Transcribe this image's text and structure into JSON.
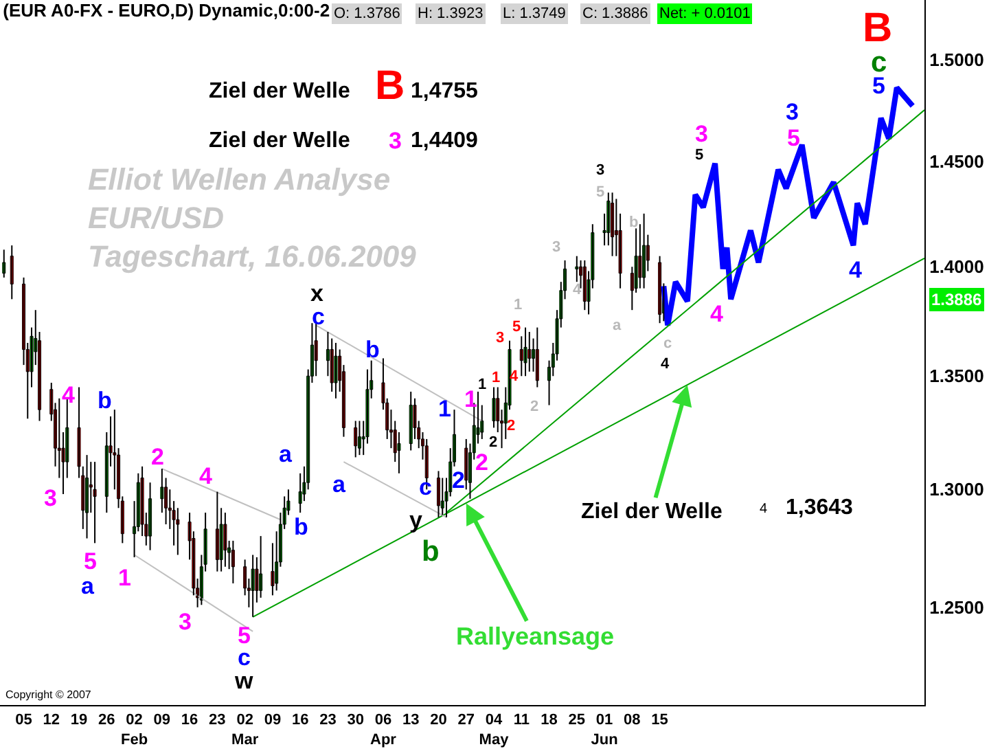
{
  "chart_data": {
    "type": "candlestick",
    "title": "(EUR A0-FX - EURO,D) Dynamic,0:00-2",
    "x": [
      "2008-12-31",
      "2009-01-02",
      "2009-01-05",
      "2009-01-06",
      "2009-01-07",
      "2009-01-08",
      "2009-01-09",
      "2009-01-12",
      "2009-01-13",
      "2009-01-14",
      "2009-01-15",
      "2009-01-16",
      "2009-01-19",
      "2009-01-20",
      "2009-01-21",
      "2009-01-22",
      "2009-01-23",
      "2009-01-26",
      "2009-01-27",
      "2009-01-28",
      "2009-01-29",
      "2009-01-30",
      "2009-02-02",
      "2009-02-03",
      "2009-02-04",
      "2009-02-05",
      "2009-02-06",
      "2009-02-09",
      "2009-02-10",
      "2009-02-11",
      "2009-02-12",
      "2009-02-13",
      "2009-02-16",
      "2009-02-17",
      "2009-02-18",
      "2009-02-19",
      "2009-02-20",
      "2009-02-23",
      "2009-02-24",
      "2009-02-25",
      "2009-02-26",
      "2009-02-27",
      "2009-03-02",
      "2009-03-03",
      "2009-03-04",
      "2009-03-05",
      "2009-03-06",
      "2009-03-09",
      "2009-03-10",
      "2009-03-11",
      "2009-03-12",
      "2009-03-13",
      "2009-03-16",
      "2009-03-17",
      "2009-03-18",
      "2009-03-19",
      "2009-03-20",
      "2009-03-23",
      "2009-03-24",
      "2009-03-25",
      "2009-03-26",
      "2009-03-27",
      "2009-03-30",
      "2009-03-31",
      "2009-04-01",
      "2009-04-02",
      "2009-04-03",
      "2009-04-06",
      "2009-04-07",
      "2009-04-08",
      "2009-04-09",
      "2009-04-10",
      "2009-04-13",
      "2009-04-14",
      "2009-04-15",
      "2009-04-16",
      "2009-04-17",
      "2009-04-20",
      "2009-04-21",
      "2009-04-22",
      "2009-04-23",
      "2009-04-24",
      "2009-04-27",
      "2009-04-28",
      "2009-04-29",
      "2009-04-30",
      "2009-05-01",
      "2009-05-04",
      "2009-05-05",
      "2009-05-06",
      "2009-05-07",
      "2009-05-08",
      "2009-05-11",
      "2009-05-12",
      "2009-05-13",
      "2009-05-14",
      "2009-05-15",
      "2009-05-18",
      "2009-05-19",
      "2009-05-20",
      "2009-05-21",
      "2009-05-22",
      "2009-05-25",
      "2009-05-26",
      "2009-05-27",
      "2009-05-28",
      "2009-05-29",
      "2009-06-01",
      "2009-06-02",
      "2009-06-03",
      "2009-06-04",
      "2009-06-05",
      "2009-06-08",
      "2009-06-09",
      "2009-06-10",
      "2009-06-11",
      "2009-06-12",
      "2009-06-15",
      "2009-06-16"
    ],
    "ohlc": [
      [
        1.397,
        1.408,
        1.395,
        1.402
      ],
      [
        1.405,
        1.41,
        1.385,
        1.392
      ],
      [
        1.392,
        1.395,
        1.355,
        1.362
      ],
      [
        1.362,
        1.365,
        1.331,
        1.352
      ],
      [
        1.352,
        1.372,
        1.345,
        1.368
      ],
      [
        1.361,
        1.38,
        1.355,
        1.367
      ],
      [
        1.366,
        1.37,
        1.33,
        1.335
      ],
      [
        1.344,
        1.347,
        1.33,
        1.333
      ],
      [
        1.335,
        1.338,
        1.31,
        1.318
      ],
      [
        1.318,
        1.34,
        1.305,
        1.317
      ],
      [
        1.318,
        1.325,
        1.298,
        1.312
      ],
      [
        1.312,
        1.34,
        1.305,
        1.327
      ],
      [
        1.327,
        1.345,
        1.305,
        1.31
      ],
      [
        1.306,
        1.31,
        1.283,
        1.291
      ],
      [
        1.29,
        1.315,
        1.279,
        1.305
      ],
      [
        1.302,
        1.312,
        1.29,
        1.301
      ],
      [
        1.3,
        1.312,
        1.277,
        1.297
      ],
      [
        1.297,
        1.325,
        1.29,
        1.319
      ],
      [
        1.319,
        1.332,
        1.31,
        1.316
      ],
      [
        1.316,
        1.335,
        1.3,
        1.315
      ],
      [
        1.315,
        1.318,
        1.292,
        1.296
      ],
      [
        1.295,
        1.297,
        1.277,
        1.281
      ],
      [
        1.281,
        1.295,
        1.271,
        1.284
      ],
      [
        1.284,
        1.307,
        1.282,
        1.303
      ],
      [
        1.305,
        1.31,
        1.28,
        1.285
      ],
      [
        1.285,
        1.29,
        1.276,
        1.28
      ],
      [
        1.28,
        1.303,
        1.274,
        1.296
      ],
      [
        1.296,
        1.309,
        1.29,
        1.301
      ],
      [
        1.301,
        1.305,
        1.285,
        1.292
      ],
      [
        1.292,
        1.3,
        1.283,
        1.291
      ],
      [
        1.291,
        1.295,
        1.276,
        1.287
      ],
      [
        1.287,
        1.292,
        1.272,
        1.285
      ],
      [
        1.286,
        1.29,
        1.27,
        1.278
      ],
      [
        1.279,
        1.282,
        1.255,
        1.258
      ],
      [
        1.258,
        1.262,
        1.25,
        1.254
      ],
      [
        1.253,
        1.272,
        1.251,
        1.267
      ],
      [
        1.268,
        1.29,
        1.265,
        1.283
      ],
      [
        1.283,
        1.299,
        1.265,
        1.27
      ],
      [
        1.27,
        1.292,
        1.265,
        1.285
      ],
      [
        1.285,
        1.29,
        1.267,
        1.274
      ],
      [
        1.273,
        1.278,
        1.266,
        1.275
      ],
      [
        1.274,
        1.278,
        1.26,
        1.267
      ],
      [
        1.267,
        1.27,
        1.255,
        1.258
      ],
      [
        1.258,
        1.262,
        1.25,
        1.257
      ],
      [
        1.257,
        1.272,
        1.246,
        1.266
      ],
      [
        1.266,
        1.271,
        1.252,
        1.257
      ],
      [
        1.257,
        1.28,
        1.254,
        1.264
      ],
      [
        1.265,
        1.277,
        1.255,
        1.259
      ],
      [
        1.26,
        1.282,
        1.257,
        1.269
      ],
      [
        1.269,
        1.29,
        1.267,
        1.285
      ],
      [
        1.285,
        1.297,
        1.283,
        1.292
      ],
      [
        1.291,
        1.3,
        1.289,
        1.295
      ],
      [
        1.294,
        1.307,
        1.29,
        1.299
      ],
      [
        1.298,
        1.31,
        1.295,
        1.303
      ],
      [
        1.303,
        1.353,
        1.3,
        1.35
      ],
      [
        1.35,
        1.374,
        1.347,
        1.364
      ],
      [
        1.366,
        1.374,
        1.35,
        1.357
      ],
      [
        1.357,
        1.37,
        1.35,
        1.362
      ],
      [
        1.362,
        1.367,
        1.343,
        1.347
      ],
      [
        1.347,
        1.365,
        1.34,
        1.359
      ],
      [
        1.359,
        1.362,
        1.343,
        1.348
      ],
      [
        1.352,
        1.355,
        1.323,
        1.327
      ],
      [
        1.327,
        1.33,
        1.314,
        1.319
      ],
      [
        1.318,
        1.33,
        1.315,
        1.323
      ],
      [
        1.322,
        1.33,
        1.315,
        1.323
      ],
      [
        1.323,
        1.353,
        1.32,
        1.344
      ],
      [
        1.344,
        1.357,
        1.34,
        1.348
      ],
      [
        1.347,
        1.358,
        1.335,
        1.338
      ],
      [
        1.338,
        1.34,
        1.322,
        1.326
      ],
      [
        1.326,
        1.335,
        1.318,
        1.325
      ],
      [
        1.326,
        1.33,
        1.312,
        1.316
      ],
      [
        1.317,
        1.325,
        1.307,
        1.32
      ],
      [
        1.32,
        1.343,
        1.317,
        1.337
      ],
      [
        1.337,
        1.34,
        1.322,
        1.327
      ],
      [
        1.327,
        1.33,
        1.318,
        1.322
      ],
      [
        1.322,
        1.325,
        1.313,
        1.319
      ],
      [
        1.319,
        1.322,
        1.3,
        1.305
      ],
      [
        1.305,
        1.308,
        1.288,
        1.293
      ],
      [
        1.292,
        1.305,
        1.289,
        1.295
      ],
      [
        1.295,
        1.305,
        1.288,
        1.299
      ],
      [
        1.299,
        1.318,
        1.297,
        1.312
      ],
      [
        1.312,
        1.335,
        1.31,
        1.324
      ],
      [
        1.318,
        1.322,
        1.3,
        1.304
      ],
      [
        1.303,
        1.32,
        1.296,
        1.316
      ],
      [
        1.316,
        1.338,
        1.313,
        1.328
      ],
      [
        1.324,
        1.343,
        1.32,
        1.327
      ],
      [
        1.325,
        1.337,
        1.322,
        1.33
      ],
      [
        1.33,
        1.345,
        1.327,
        1.34
      ],
      [
        1.34,
        1.345,
        1.325,
        1.33
      ],
      [
        1.33,
        1.335,
        1.318,
        1.329
      ],
      [
        1.329,
        1.345,
        1.322,
        1.338
      ],
      [
        1.337,
        1.366,
        1.335,
        1.362
      ],
      [
        1.362,
        1.368,
        1.35,
        1.357
      ],
      [
        1.356,
        1.372,
        1.35,
        1.363
      ],
      [
        1.362,
        1.37,
        1.352,
        1.358
      ],
      [
        1.358,
        1.367,
        1.352,
        1.362
      ],
      [
        1.362,
        1.372,
        1.345,
        1.348
      ],
      [
        1.348,
        1.357,
        1.337,
        1.354
      ],
      [
        1.354,
        1.365,
        1.35,
        1.36
      ],
      [
        1.36,
        1.38,
        1.357,
        1.376
      ],
      [
        1.376,
        1.393,
        1.372,
        1.389
      ],
      [
        1.389,
        1.403,
        1.385,
        1.399
      ],
      [
        1.399,
        1.405,
        1.393,
        1.4
      ],
      [
        1.4,
        1.403,
        1.39,
        1.396
      ],
      [
        1.4,
        1.403,
        1.38,
        1.384
      ],
      [
        1.384,
        1.398,
        1.378,
        1.394
      ],
      [
        1.394,
        1.42,
        1.39,
        1.416
      ],
      [
        1.416,
        1.425,
        1.41,
        1.417
      ],
      [
        1.416,
        1.435,
        1.41,
        1.431
      ],
      [
        1.43,
        1.435,
        1.405,
        1.414
      ],
      [
        1.417,
        1.432,
        1.405,
        1.415
      ],
      [
        1.417,
        1.425,
        1.39,
        1.397
      ],
      [
        1.397,
        1.4,
        1.38,
        1.389
      ],
      [
        1.39,
        1.418,
        1.388,
        1.405
      ],
      [
        1.405,
        1.42,
        1.39,
        1.395
      ],
      [
        1.395,
        1.425,
        1.39,
        1.41
      ],
      [
        1.41,
        1.415,
        1.398,
        1.403
      ],
      [
        1.402,
        1.405,
        1.374,
        1.378
      ],
      [
        1.3786,
        1.3923,
        1.3749,
        1.3886
      ]
    ],
    "series": [
      {
        "type": "line",
        "color": "#0000ff",
        "x": [
          "2009-06-16",
          "2009-06-17",
          "2009-06-19",
          "2009-06-22",
          "2009-06-24",
          "2009-06-26",
          "2009-06-29",
          "2009-07-01",
          "2009-07-02",
          "2009-07-03",
          "2009-07-08",
          "2009-07-10",
          "2009-07-15",
          "2009-07-17",
          "2009-07-21",
          "2009-07-24",
          "2009-07-29",
          "2009-08-03",
          "2009-08-04",
          "2009-08-06",
          "2009-08-10",
          "2009-08-12",
          "2009-08-14",
          "2009-08-18"
        ],
        "values": [
          1.391,
          1.373,
          1.393,
          1.384,
          1.434,
          1.428,
          1.449,
          1.399,
          1.409,
          1.385,
          1.417,
          1.402,
          1.446,
          1.437,
          1.458,
          1.423,
          1.44,
          1.41,
          1.43,
          1.42,
          1.471,
          1.461,
          1.486,
          1.477
        ]
      },
      {
        "type": "line",
        "color": "#00a000",
        "x": [
          "2009-03-04",
          "2009-08-21"
        ],
        "values": [
          1.246,
          1.404
        ]
      },
      {
        "type": "line",
        "color": "#00a000",
        "x": [
          "2009-04-22",
          "2009-08-21"
        ],
        "values": [
          1.29,
          1.475
        ]
      },
      {
        "type": "line",
        "color": "#c0c0c0",
        "x": [
          "2009-03-20",
          "2009-05-01"
        ],
        "values": [
          1.373,
          1.33
        ]
      },
      {
        "type": "line",
        "color": "#c0c0c0",
        "x": [
          "2009-03-27",
          "2009-04-22"
        ],
        "values": [
          1.312,
          1.288
        ]
      },
      {
        "type": "line",
        "color": "#c0c0c0",
        "x": [
          "2009-02-09",
          "2009-03-11"
        ],
        "values": [
          1.309,
          1.287
        ]
      },
      {
        "type": "line",
        "color": "#c0c0c0",
        "x": [
          "2009-02-02",
          "2009-03-04"
        ],
        "values": [
          1.272,
          1.24
        ]
      }
    ],
    "xlim": [
      "2008-12-30",
      "2009-08-21"
    ],
    "xticks": [
      {
        "value": "2009-01-05",
        "label": "05"
      },
      {
        "value": "2009-01-12",
        "label": "12"
      },
      {
        "value": "2009-01-19",
        "label": "19"
      },
      {
        "value": "2009-01-26",
        "label": "26"
      },
      {
        "value": "2009-02-02",
        "label": "02\nFeb"
      },
      {
        "value": "2009-02-09",
        "label": "09"
      },
      {
        "value": "2009-02-16",
        "label": "16"
      },
      {
        "value": "2009-02-23",
        "label": "23"
      },
      {
        "value": "2009-03-02",
        "label": "02\nMar"
      },
      {
        "value": "2009-03-09",
        "label": "09"
      },
      {
        "value": "2009-03-16",
        "label": "16"
      },
      {
        "value": "2009-03-23",
        "label": "23"
      },
      {
        "value": "2009-03-30",
        "label": "30"
      },
      {
        "value": "2009-04-06",
        "label": "06\nApr"
      },
      {
        "value": "2009-04-13",
        "label": "13"
      },
      {
        "value": "2009-04-20",
        "label": "20"
      },
      {
        "value": "2009-04-27",
        "label": "27"
      },
      {
        "value": "2009-05-04",
        "label": "04\nMay"
      },
      {
        "value": "2009-05-11",
        "label": "11"
      },
      {
        "value": "2009-05-18",
        "label": "18"
      },
      {
        "value": "2009-05-25",
        "label": "25"
      },
      {
        "value": "2009-06-01",
        "label": "01\nJun"
      },
      {
        "value": "2009-06-08",
        "label": "08"
      },
      {
        "value": "2009-06-15",
        "label": "15"
      }
    ],
    "ylim": [
      1.21,
      1.53
    ],
    "yticks": [
      {
        "value": 1.25,
        "label": "1.2500"
      },
      {
        "value": 1.3,
        "label": "1.3000"
      },
      {
        "value": 1.35,
        "label": "1.3500"
      },
      {
        "value": 1.4,
        "label": "1.4000"
      },
      {
        "value": 1.45,
        "label": "1.4500"
      },
      {
        "value": 1.5,
        "label": "1.5000"
      }
    ],
    "log": "y",
    "annotations": [
      "4",
      "b",
      "3",
      "5",
      "a",
      "2",
      "1",
      "4",
      "3",
      "5",
      "c",
      "w",
      "a",
      "b",
      "x",
      "c",
      "b",
      "a",
      "1",
      "1",
      "1",
      "2",
      "2",
      "2",
      "c",
      "y",
      "b",
      "3",
      "5",
      "1",
      "4",
      "2",
      "1",
      "2",
      "3",
      "4",
      "5",
      "a",
      "b",
      "c",
      "3",
      "4",
      "5",
      "3",
      "4",
      "3",
      "5",
      "4",
      "5",
      "c",
      "B",
      "Ziel der Welle",
      "B",
      "1,4755",
      "Ziel der Welle",
      "3",
      "1,4409",
      "Elliot Wellen Analyse",
      "EUR/USD",
      "Tageschart, 16.06.2009",
      {
        "text": "Ziel der Welle",
        "x": "2009-06-22",
        "y": 1.346
      },
      "1,3643",
      "O: 1.3786",
      "H: 1.3923",
      "L: 1.3749",
      "C: 1.3886",
      "Net: + 0.0101",
      "Copyright © 2007",
      "4",
      {
        "text": "Rallyeansage",
        "x": "2009-04-27",
        "y": 1.294
      },
      "1.3886"
    ]
  }
}
